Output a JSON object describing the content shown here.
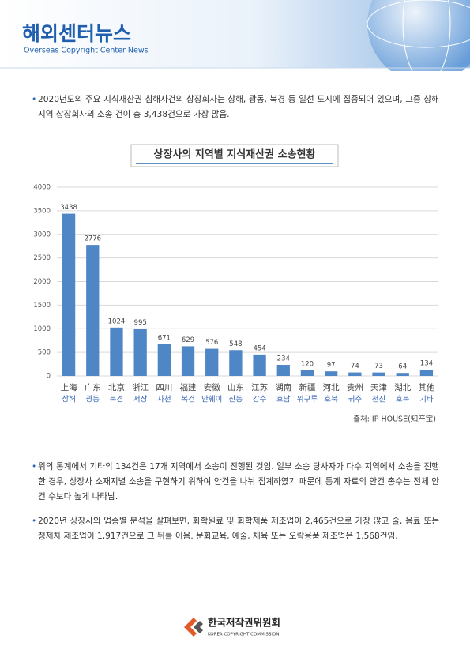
{
  "header": {
    "title": "해외센터뉴스",
    "subtitle": "Overseas Copyright Center News"
  },
  "paragraphs": [
    "2020년도의 주요 지식재산권 침해사건의 상장회사는 상해, 광동, 북경 등 일선 도시에 집중되어 있으며, 그중 상해지역 상장회사의 소송 건이 총 3,438건으로 가장 많음.",
    "위의 통계에서 기타의 134건은 17개 지역에서 소송이 진행된 것임. 일부 소송 당사자가 다수 지역에서 소송을 진행한 경우, 상장사 소재지별 소송을 구현하기 위하여 안건을 나눠 집계하였기 때문에 통계 자료의 안건 총수는 전체 안건 수보다 높게 나타남.",
    "2020년 상장사의 업종별 분석을 살펴보면, 화학원료 및 화학제품 제조업이 2,465건으로 가장 많고 술, 음료 또는 정제차 제조업이 1,917건으로 그 뒤를 이음. 문화교육, 예술, 체육 또는 오락용품 제조업은 1,568건임."
  ],
  "chart_data": {
    "type": "bar",
    "title": "상장사의 지역별 지식재산권 소송현황",
    "categories": [
      "上海",
      "广东",
      "北京",
      "浙江",
      "四川",
      "福建",
      "安徽",
      "山东",
      "江苏",
      "湖南",
      "新疆",
      "河北",
      "贵州",
      "天津",
      "湖北",
      "其他"
    ],
    "category_labels_ko": [
      "상해",
      "광동",
      "북경",
      "저장",
      "사천",
      "복건",
      "안훼이",
      "산동",
      "강수",
      "호남",
      "위구루",
      "호북",
      "귀주",
      "천진",
      "호북",
      "기타"
    ],
    "values": [
      3438,
      2776,
      1024,
      995,
      671,
      629,
      576,
      548,
      454,
      234,
      120,
      97,
      74,
      73,
      64,
      134
    ],
    "color": "#4f86c6",
    "ylim": [
      0,
      4000
    ],
    "yticks": [
      0,
      500,
      1000,
      1500,
      2000,
      2500,
      3000,
      3500,
      4000
    ],
    "grid": true
  },
  "source": "출처: IP HOUSE(知产宝)",
  "footer": {
    "org": "한국저작권위원회",
    "org_en": "KOREA COPYRIGHT COMMISSION"
  }
}
